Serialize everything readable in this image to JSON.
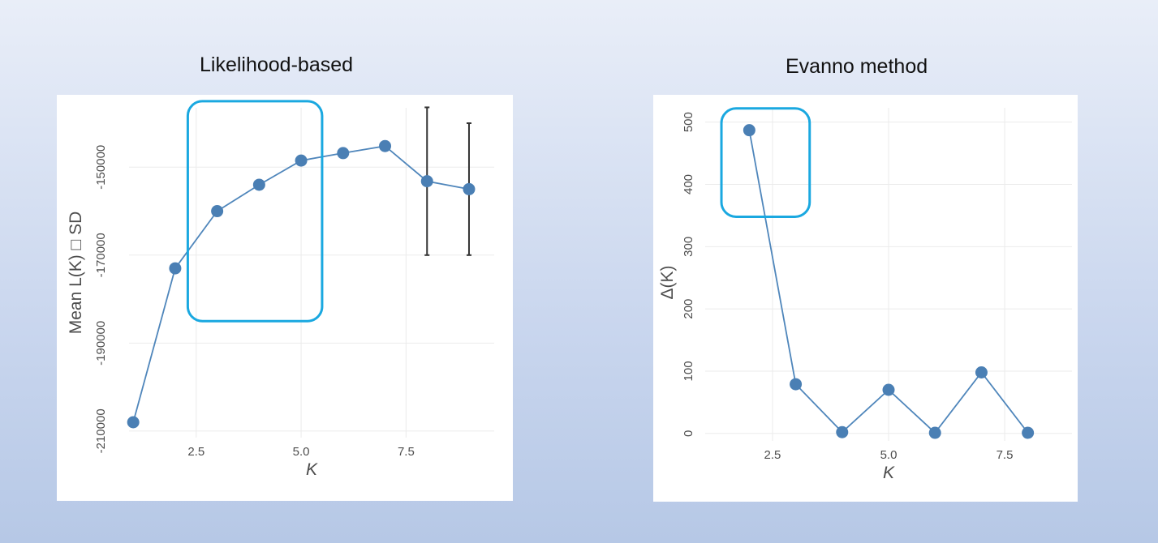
{
  "titles": {
    "left": "Likelihood-based",
    "right": "Evanno method"
  },
  "colors": {
    "series": "#4a7fb4",
    "line": "#4f86bb",
    "highlight": "#1aa8e0",
    "errorbar": "#333333",
    "grid": "#ebebeb"
  },
  "chart_data": [
    {
      "type": "line",
      "title": "Likelihood-based",
      "xlabel": "K",
      "ylabel": "Mean L(K) □ SD",
      "x": [
        1,
        2,
        3,
        4,
        5,
        6,
        7,
        8,
        9
      ],
      "y": [
        -208000,
        -173000,
        -160000,
        -154000,
        -148500,
        -146800,
        -145200,
        -153200,
        -155000
      ],
      "sd": [
        200,
        300,
        300,
        300,
        300,
        300,
        300,
        16800,
        15000
      ],
      "xlim": [
        0.9,
        9.6
      ],
      "ylim": [
        -211500,
        -136500
      ],
      "xticks": [
        2.5,
        5.0,
        7.5
      ],
      "xtick_labels": [
        "2.5",
        "5.0",
        "7.5"
      ],
      "yticks": [
        -150000,
        -170000,
        -190000,
        -210000
      ],
      "ytick_labels": [
        "-150000",
        "-170000",
        "-190000",
        "-210000"
      ],
      "highlight_range": {
        "x": [
          2.3,
          5.5
        ],
        "y": [
          -185000,
          -135000
        ]
      },
      "grid": true
    },
    {
      "type": "line",
      "title": "Evanno method",
      "xlabel": "K",
      "ylabel": "Δ(K)",
      "x": [
        2,
        3,
        4,
        5,
        6,
        7,
        8
      ],
      "y": [
        487,
        79,
        2,
        70,
        1,
        98,
        1
      ],
      "xlim": [
        1.05,
        8.95
      ],
      "ylim": [
        -12,
        523
      ],
      "xticks": [
        2.5,
        5.0,
        7.5
      ],
      "xtick_labels": [
        "2.5",
        "5.0",
        "7.5"
      ],
      "yticks": [
        0,
        100,
        200,
        300,
        400,
        500
      ],
      "ytick_labels": [
        "0",
        "100",
        "200",
        "300",
        "400",
        "500"
      ],
      "highlight_range": {
        "x": [
          1.4,
          3.3
        ],
        "y": [
          348,
          522
        ]
      },
      "grid": true
    }
  ]
}
